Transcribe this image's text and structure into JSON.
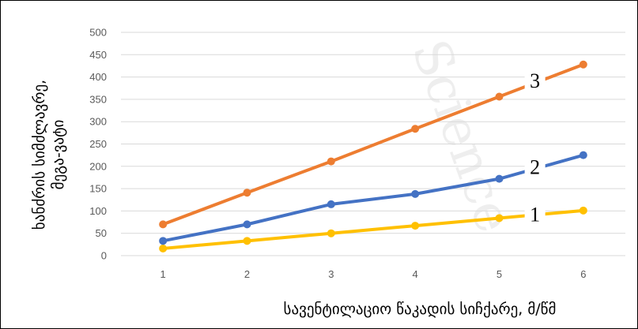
{
  "chart_data": {
    "type": "line",
    "xlabel": "სავენტილაციო წაკადის სიჩქარე, მ/წმ",
    "ylabel_line1": "ხანძრის სიმძლავრე,",
    "ylabel_line2": "მეგა-ვატი",
    "x": [
      1,
      2,
      3,
      4,
      5,
      6
    ],
    "ylim": [
      0,
      500
    ],
    "yticks": [
      0,
      50,
      100,
      150,
      200,
      250,
      300,
      350,
      400,
      450,
      500
    ],
    "grid": true,
    "series": [
      {
        "name": "1",
        "color": "#FFC000",
        "values": [
          16,
          33,
          50,
          67,
          84,
          101
        ]
      },
      {
        "name": "2",
        "color": "#4472C4",
        "values": [
          33,
          70,
          115,
          138,
          172,
          225
        ]
      },
      {
        "name": "3",
        "color": "#ED7D31",
        "values": [
          70,
          141,
          211,
          284,
          356,
          428
        ]
      }
    ]
  }
}
